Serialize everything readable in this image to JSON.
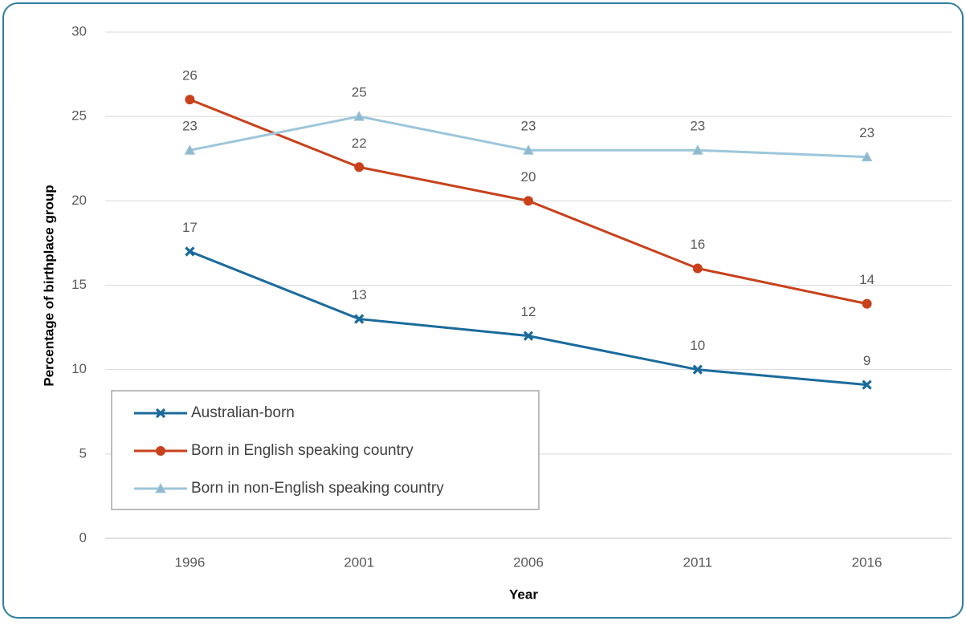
{
  "chart_data": {
    "type": "line",
    "x_label": "Year",
    "y_label": "Percentage of birthplace group",
    "categories": [
      "1996",
      "2001",
      "2006",
      "2011",
      "2016"
    ],
    "series": [
      {
        "name": "Australian-born",
        "color": "#1a6b9c",
        "marker": "x",
        "values": [
          17,
          13,
          12,
          10,
          9.1
        ],
        "value_labels": [
          "17",
          "13",
          "12",
          "10",
          "9"
        ]
      },
      {
        "name": "Born in English speaking country",
        "color": "#c8411b",
        "marker": "circle",
        "values": [
          26,
          22,
          20,
          16,
          13.9
        ],
        "value_labels": [
          "26",
          "22",
          "20",
          "16",
          "14"
        ]
      },
      {
        "name": "Born in non-English speaking country",
        "color": "#9dc6da",
        "marker": "triangle",
        "values": [
          23,
          25,
          23,
          23,
          22.6
        ],
        "value_labels": [
          "23",
          "25",
          "23",
          "23",
          "23"
        ]
      }
    ],
    "ylim": [
      0,
      30
    ],
    "yticks": [
      0,
      5,
      10,
      15,
      20,
      25,
      30
    ],
    "grid": true,
    "legend": "lower left"
  }
}
